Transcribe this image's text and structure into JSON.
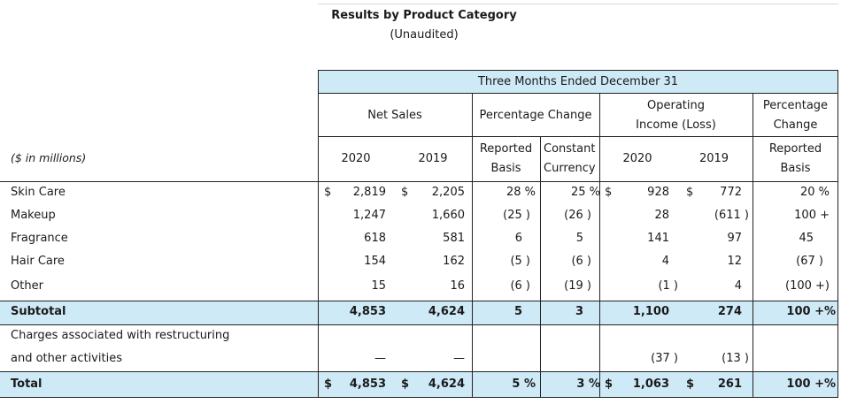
{
  "title": "Results by Product Category",
  "subtitle": "(Unaudited)",
  "header": {
    "period": "Three Months Ended December 31",
    "net_sales": "Net Sales",
    "pct_change": "Percentage Change",
    "op_income_1": "Operating",
    "op_income_2": "Income (Loss)",
    "pct_change_1": "Percentage",
    "pct_change_2": "Change",
    "units": "($ in millions)",
    "y2020": "2020",
    "y2019": "2019",
    "reported_1": "Reported",
    "reported_2": "Basis",
    "constant_1": "Constant",
    "constant_2": "Currency",
    "op2020": "2020",
    "op2019": "2019",
    "rep_1": "Reported",
    "rep_2": "Basis"
  },
  "currency_symbol": "$",
  "rows": [
    {
      "label": "Skin Care",
      "ns2020": "2,819",
      "ns2019": "2,205",
      "rep": "28 %",
      "cc": "25 %",
      "oi2020": "928",
      "oi2019": "772",
      "oirep": "20 %"
    },
    {
      "label": "Makeup",
      "ns2020": "1,247",
      "ns2019": "1,660",
      "rep": "(25 )",
      "cc": "(26 )",
      "oi2020": "28",
      "oi2019": "(611 )",
      "oirep": "100 +"
    },
    {
      "label": "Fragrance",
      "ns2020": "618",
      "ns2019": "581",
      "rep": "6",
      "cc": "5",
      "oi2020": "141",
      "oi2019": "97",
      "oirep": "45"
    },
    {
      "label": "Hair Care",
      "ns2020": "154",
      "ns2019": "162",
      "rep": "(5 )",
      "cc": "(6 )",
      "oi2020": "4",
      "oi2019": "12",
      "oirep": "(67 )"
    },
    {
      "label": "Other",
      "ns2020": "15",
      "ns2019": "16",
      "rep": "(6 )",
      "cc": "(19 )",
      "oi2020": "(1 )",
      "oi2019": "4",
      "oirep": "(100 +)"
    }
  ],
  "subtotal": {
    "label": "Subtotal",
    "ns2020": "4,853",
    "ns2019": "4,624",
    "rep": "5",
    "cc": "3",
    "oi2020": "1,100",
    "oi2019": "274",
    "oirep": "100 +%"
  },
  "charges": {
    "label_1": "Charges associated with restructuring",
    "label_2": "and other activities",
    "ns2020": "—",
    "ns2019": "—",
    "oi2020": "(37 )",
    "oi2019": "(13 )"
  },
  "total": {
    "label": "Total",
    "ns2020": "4,853",
    "ns2019": "4,624",
    "rep": "5 %",
    "cc": "3 %",
    "oi2020": "1,063",
    "oi2019": "261",
    "oirep": "100 +%"
  }
}
